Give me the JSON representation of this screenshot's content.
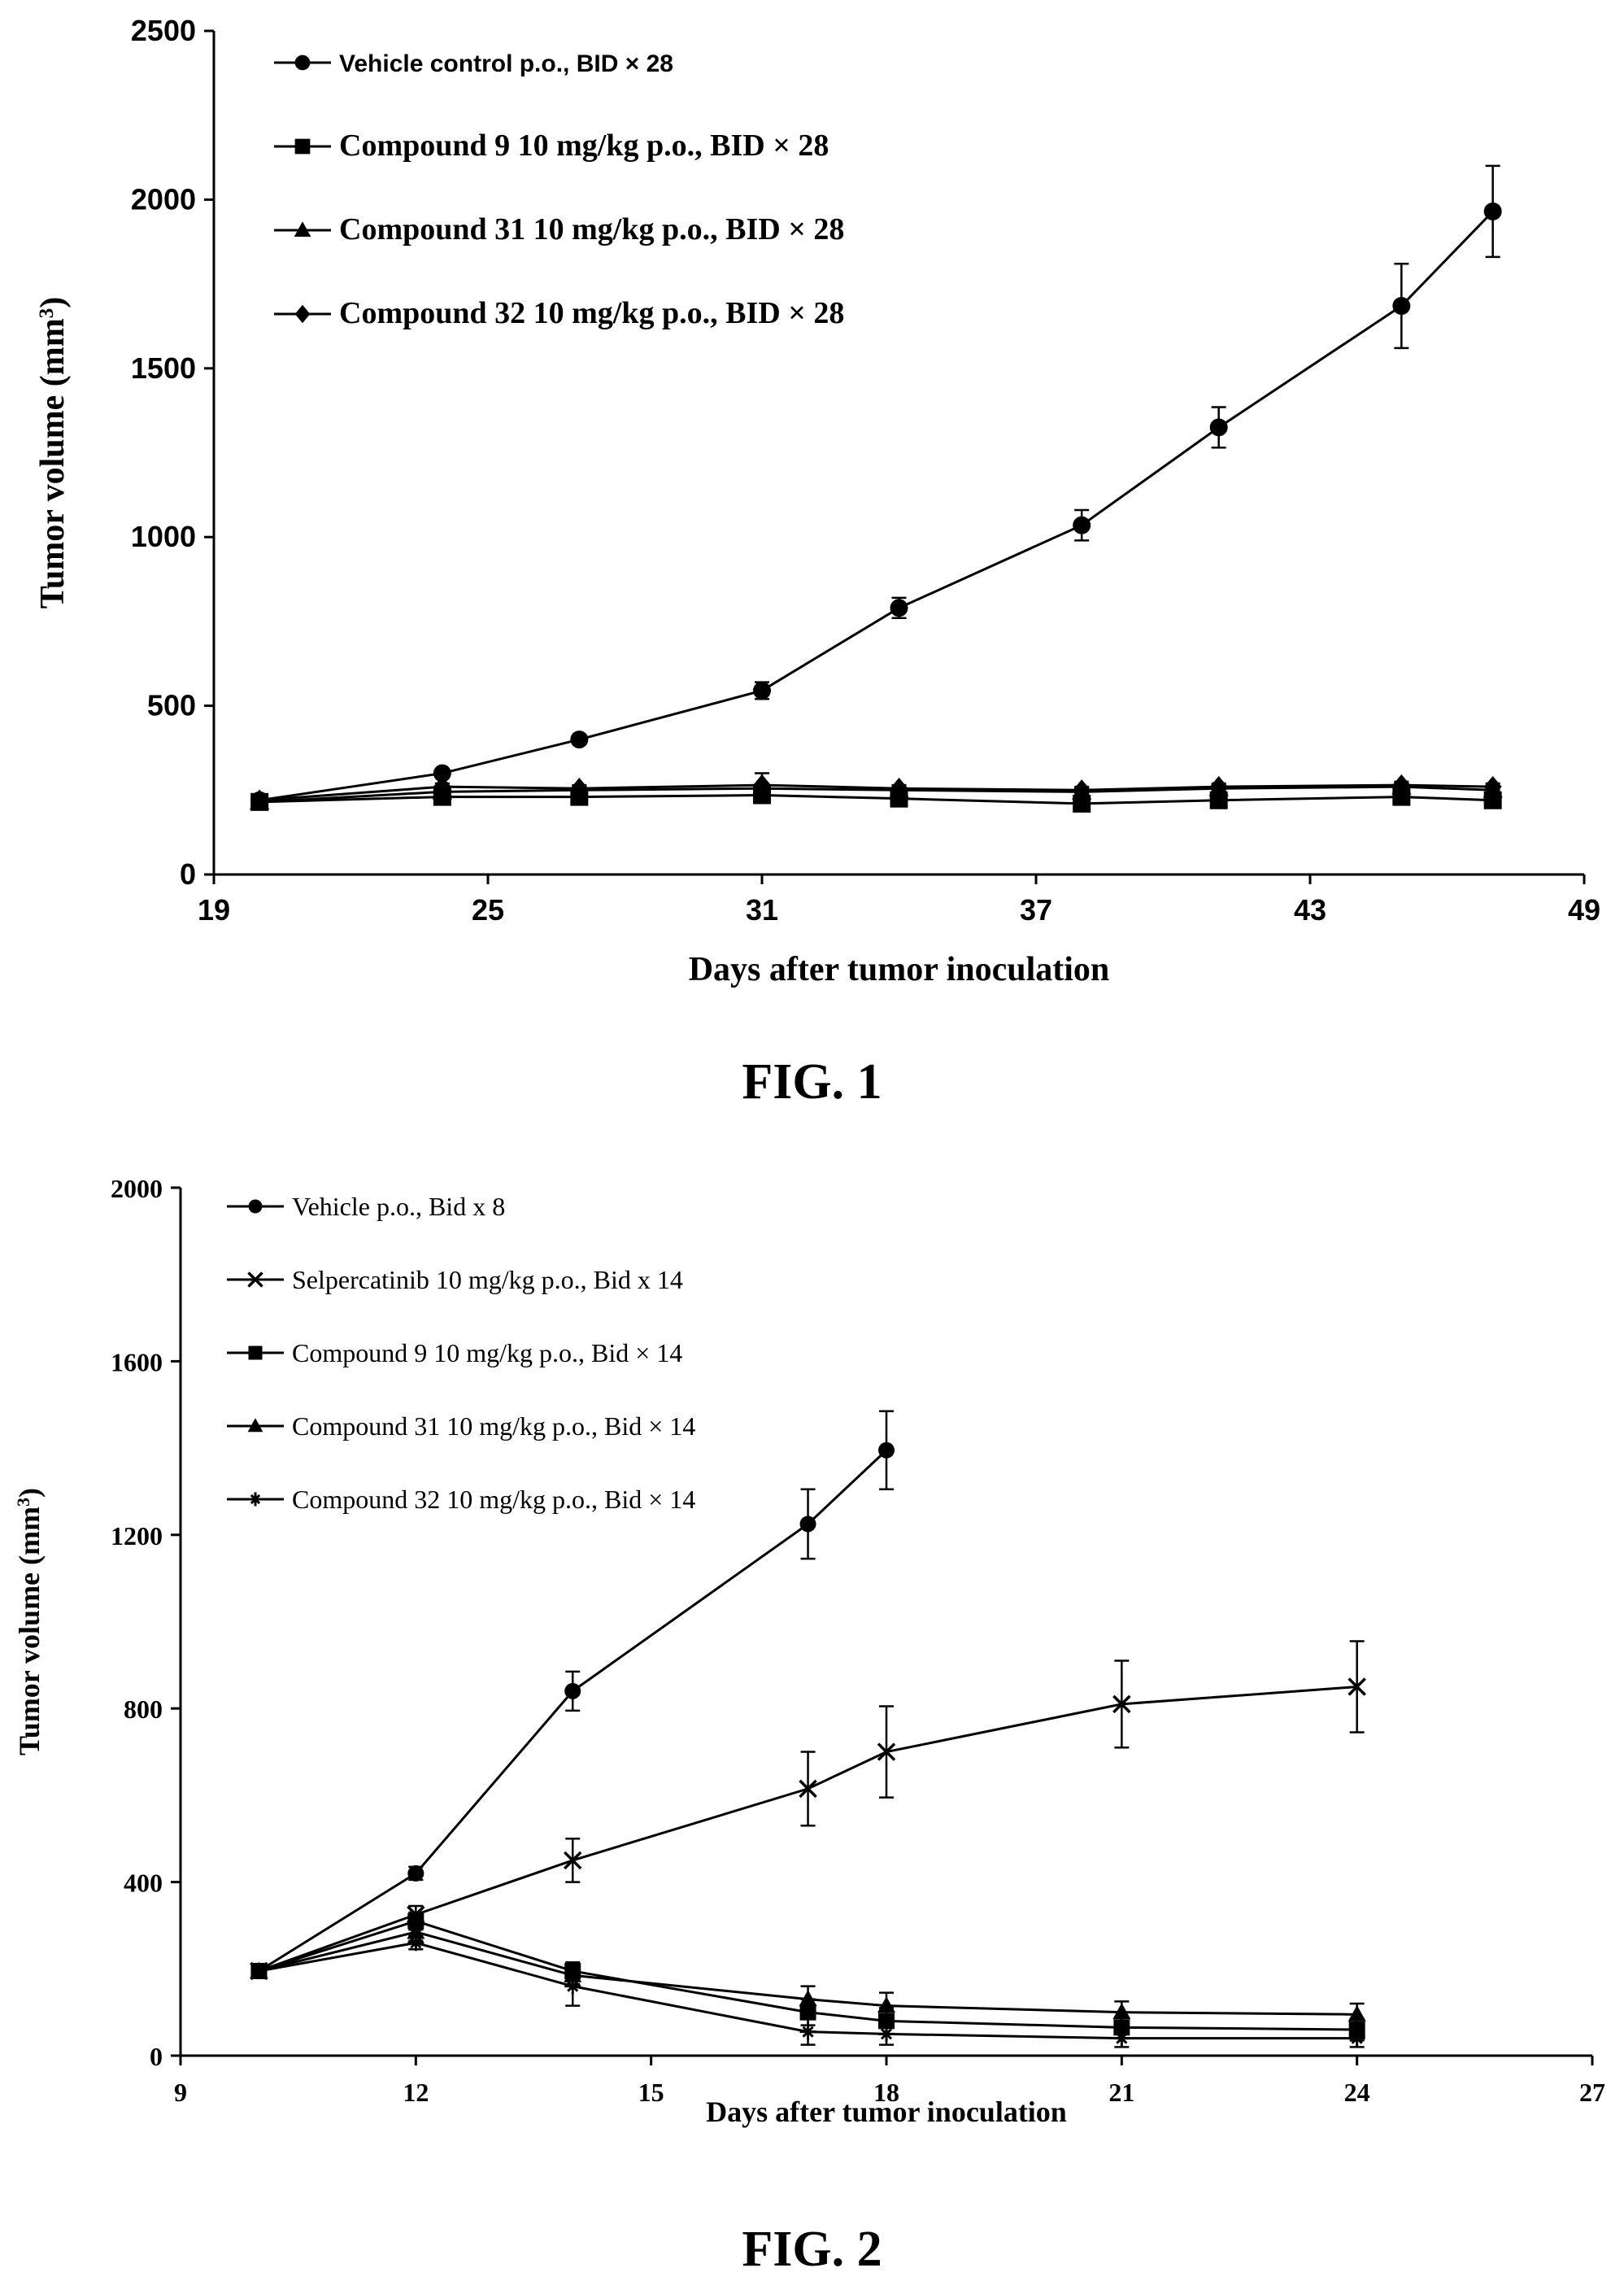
{
  "captions": {
    "fig1": "FIG. 1",
    "fig2": "FIG. 2"
  },
  "chart_data": [
    {
      "type": "line",
      "xlabel": "Days after tumor inoculation",
      "ylabel": "Tumor volume (mm3)",
      "xlim": [
        19,
        49
      ],
      "ylim": [
        0,
        2500
      ],
      "xticks": [
        19,
        25,
        31,
        37,
        43,
        49
      ],
      "yticks": [
        0,
        500,
        1000,
        1500,
        2000,
        2500
      ],
      "grid": false,
      "legend_position": "top-left",
      "series": [
        {
          "name": "Vehicle control p.o., BID × 28",
          "marker": "circle",
          "x": [
            20,
            24,
            27,
            31,
            34,
            38,
            41,
            45,
            47
          ],
          "y": [
            220,
            300,
            400,
            545,
            790,
            1035,
            1325,
            1685,
            1965
          ],
          "err": [
            10,
            10,
            12,
            25,
            30,
            45,
            60,
            125,
            135
          ]
        },
        {
          "name": "Compound 9 10 mg/kg p.o., BID × 28",
          "marker": "square",
          "x": [
            20,
            24,
            27,
            31,
            34,
            38,
            41,
            45,
            47
          ],
          "y": [
            215,
            230,
            230,
            235,
            225,
            210,
            220,
            230,
            220
          ],
          "err": [
            5,
            8,
            8,
            8,
            8,
            8,
            8,
            8,
            8
          ]
        },
        {
          "name": "Compound 31 10 mg/kg p.o., BID × 28",
          "marker": "triangle",
          "x": [
            20,
            24,
            27,
            31,
            34,
            38,
            41,
            45,
            47
          ],
          "y": [
            215,
            245,
            250,
            255,
            250,
            245,
            255,
            260,
            250
          ],
          "err": [
            5,
            8,
            10,
            12,
            10,
            10,
            10,
            10,
            10
          ]
        },
        {
          "name": "Compound 32 10 mg/kg p.o., BID × 28",
          "marker": "diamond",
          "x": [
            20,
            24,
            27,
            31,
            34,
            38,
            41,
            45,
            47
          ],
          "y": [
            220,
            260,
            255,
            265,
            255,
            250,
            260,
            265,
            260
          ],
          "err": [
            5,
            10,
            10,
            35,
            10,
            10,
            10,
            10,
            10
          ]
        }
      ]
    },
    {
      "type": "line",
      "xlabel": "Days after tumor inoculation",
      "ylabel": "Tumor volume (mm3)",
      "xlim": [
        9,
        27
      ],
      "ylim": [
        0,
        2000
      ],
      "xticks": [
        9,
        12,
        15,
        18,
        21,
        24,
        27
      ],
      "yticks": [
        0,
        400,
        800,
        1200,
        1600,
        2000
      ],
      "grid": false,
      "legend_position": "top-left",
      "series": [
        {
          "name": "Vehicle p.o., Bid x 8",
          "marker": "circle",
          "x": [
            10,
            12,
            14,
            17,
            18
          ],
          "y": [
            195,
            420,
            840,
            1225,
            1395
          ],
          "err": [
            10,
            15,
            45,
            80,
            90
          ]
        },
        {
          "name": "Selpercatinib 10 mg/kg p.o., Bid x 14",
          "marker": "cross",
          "x": [
            10,
            12,
            14,
            17,
            18,
            21,
            24
          ],
          "y": [
            195,
            325,
            450,
            615,
            700,
            810,
            850
          ],
          "err": [
            10,
            20,
            50,
            85,
            105,
            100,
            105
          ]
        },
        {
          "name": "Compound 9 10 mg/kg p.o., Bid × 14",
          "marker": "square",
          "x": [
            10,
            12,
            14,
            17,
            18,
            21,
            24
          ],
          "y": [
            195,
            310,
            195,
            100,
            80,
            65,
            60
          ],
          "err": [
            10,
            20,
            20,
            30,
            30,
            25,
            25
          ]
        },
        {
          "name": "Compound 31 10 mg/kg p.o., Bid × 14",
          "marker": "triangle",
          "x": [
            10,
            12,
            14,
            17,
            18,
            21,
            24
          ],
          "y": [
            195,
            285,
            185,
            130,
            115,
            100,
            95
          ],
          "err": [
            10,
            20,
            20,
            30,
            30,
            25,
            25
          ]
        },
        {
          "name": "Compound 32 10 mg/kg p.o., Bid × 14",
          "marker": "star",
          "x": [
            10,
            12,
            14,
            17,
            18,
            21,
            24
          ],
          "y": [
            195,
            260,
            160,
            55,
            50,
            40,
            40
          ],
          "err": [
            10,
            15,
            45,
            30,
            25,
            20,
            20
          ]
        }
      ]
    }
  ]
}
